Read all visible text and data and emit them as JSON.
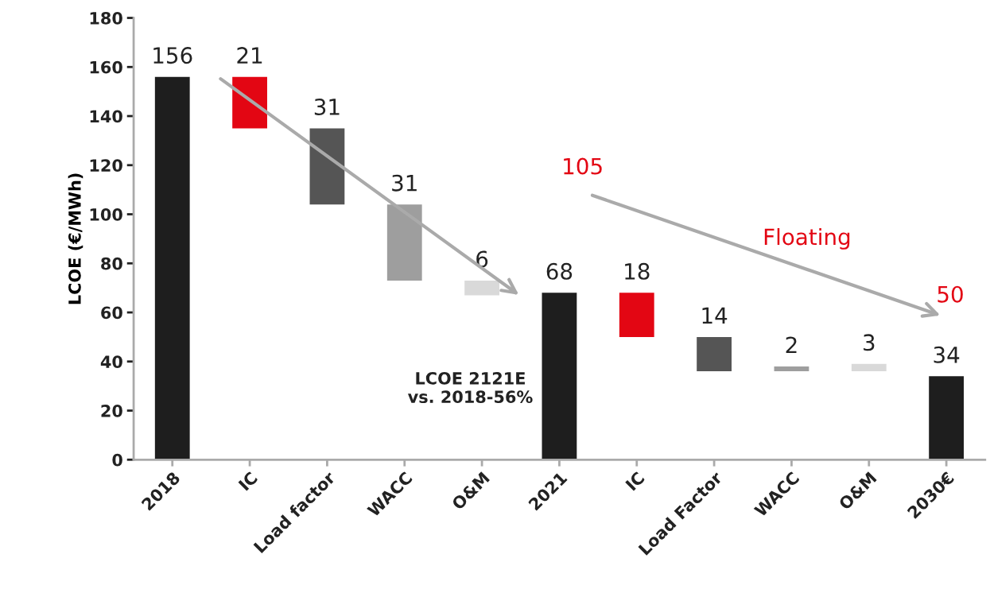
{
  "chart_data": {
    "type": "bar",
    "ylabel": "LCOE (€/MWh)",
    "categories": [
      "2018",
      "IC",
      "Load factor",
      "WACC",
      "O&M",
      "2021",
      "IC",
      "Load Factor",
      "WACC",
      "O&M",
      "2030€"
    ],
    "values": [
      156,
      21,
      31,
      31,
      6,
      68,
      18,
      14,
      2,
      3,
      34
    ],
    "base": [
      0,
      135,
      104,
      73,
      67,
      0,
      50,
      36,
      36,
      36,
      0
    ],
    "colors": [
      "#1e1e1e",
      "#e30613",
      "#555555",
      "#9e9e9e",
      "#d9d9d9",
      "#1e1e1e",
      "#e30613",
      "#555555",
      "#9e9e9e",
      "#d9d9d9",
      "#1e1e1e"
    ],
    "data_labels": true,
    "ylim": [
      0,
      180
    ],
    "yticks": [
      0,
      20,
      40,
      60,
      80,
      100,
      120,
      140,
      160,
      180
    ],
    "grid": false,
    "annotations": [
      "105",
      "Floating",
      "50",
      "LCOE 2121E\nvs. 2018-56%"
    ]
  }
}
